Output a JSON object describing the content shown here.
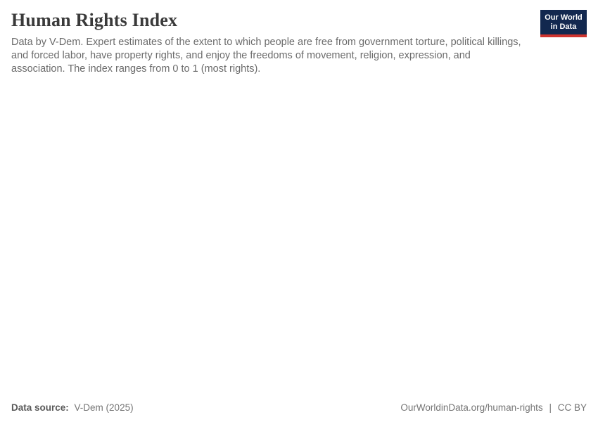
{
  "header": {
    "title": "Human Rights Index",
    "subtitle": "Data by V-Dem. Expert estimates of the extent to which people are free from government torture, political killings, and forced labor, have property rights, and enjoy the freedoms of movement, religion, expression, and association. The index ranges from 0 to 1 (most rights)."
  },
  "logo": {
    "line1": "Our World",
    "line2": "in Data",
    "bg_color": "#12284f",
    "accent_color": "#cf342f"
  },
  "footer": {
    "source_label": "Data source:",
    "source_value": "V-Dem (2025)",
    "link_text": "OurWorldinData.org/human-rights",
    "separator": "|",
    "license": "CC BY"
  },
  "colors": {
    "title": "#3a3a3a",
    "subtitle": "#6b6b6b",
    "footer_text": "#757575",
    "background": "#ffffff"
  },
  "chart_data": {
    "type": "line",
    "title": "Human Rights Index",
    "x": [],
    "series": [],
    "plot_area_empty": true,
    "ylim_described_in_subtitle": [
      0,
      1
    ]
  }
}
